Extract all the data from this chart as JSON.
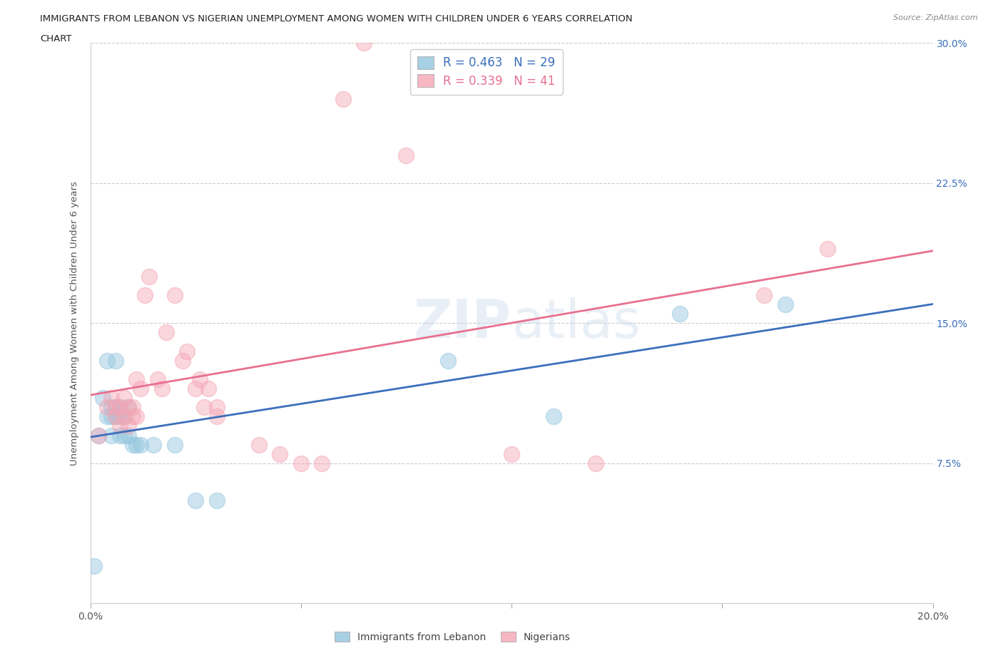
{
  "title_line1": "IMMIGRANTS FROM LEBANON VS NIGERIAN UNEMPLOYMENT AMONG WOMEN WITH CHILDREN UNDER 6 YEARS CORRELATION",
  "title_line2": "CHART",
  "source": "Source: ZipAtlas.com",
  "ylabel": "Unemployment Among Women with Children Under 6 years",
  "xmin": 0.0,
  "xmax": 0.2,
  "ymin": 0.0,
  "ymax": 0.3,
  "blue_color": "#92c5de",
  "pink_color": "#f4a5b4",
  "blue_line_color": "#3a6fbc",
  "pink_line_color": "#e87090",
  "blue_text_color": "#3a6fbc",
  "pink_text_color": "#e87090",
  "legend1_text": "R = 0.463   N = 29",
  "legend2_text": "R = 0.339   N = 41",
  "legend1_bottom": "Immigrants from Lebanon",
  "legend2_bottom": "Nigerians",
  "watermark_text": "ZIPAtlas",
  "lebanon_x": [
    0.001,
    0.002,
    0.003,
    0.004,
    0.004,
    0.005,
    0.005,
    0.005,
    0.006,
    0.006,
    0.006,
    0.007,
    0.007,
    0.007,
    0.008,
    0.008,
    0.009,
    0.009,
    0.01,
    0.011,
    0.012,
    0.015,
    0.02,
    0.025,
    0.03,
    0.085,
    0.11,
    0.14,
    0.165
  ],
  "lebanon_y": [
    0.02,
    0.09,
    0.11,
    0.1,
    0.13,
    0.09,
    0.1,
    0.105,
    0.1,
    0.105,
    0.13,
    0.09,
    0.1,
    0.105,
    0.09,
    0.1,
    0.09,
    0.105,
    0.085,
    0.085,
    0.085,
    0.085,
    0.085,
    0.055,
    0.055,
    0.13,
    0.1,
    0.155,
    0.16
  ],
  "nigerian_x": [
    0.002,
    0.004,
    0.005,
    0.006,
    0.006,
    0.007,
    0.007,
    0.008,
    0.008,
    0.009,
    0.009,
    0.01,
    0.01,
    0.011,
    0.011,
    0.012,
    0.013,
    0.014,
    0.016,
    0.017,
    0.018,
    0.02,
    0.022,
    0.023,
    0.025,
    0.026,
    0.027,
    0.028,
    0.03,
    0.03,
    0.04,
    0.045,
    0.05,
    0.055,
    0.06,
    0.065,
    0.075,
    0.1,
    0.12,
    0.16,
    0.175
  ],
  "nigerian_y": [
    0.09,
    0.105,
    0.11,
    0.1,
    0.105,
    0.095,
    0.105,
    0.1,
    0.11,
    0.095,
    0.105,
    0.105,
    0.1,
    0.1,
    0.12,
    0.115,
    0.165,
    0.175,
    0.12,
    0.115,
    0.145,
    0.165,
    0.13,
    0.135,
    0.115,
    0.12,
    0.105,
    0.115,
    0.1,
    0.105,
    0.085,
    0.08,
    0.075,
    0.075,
    0.27,
    0.3,
    0.24,
    0.08,
    0.075,
    0.165,
    0.19
  ]
}
